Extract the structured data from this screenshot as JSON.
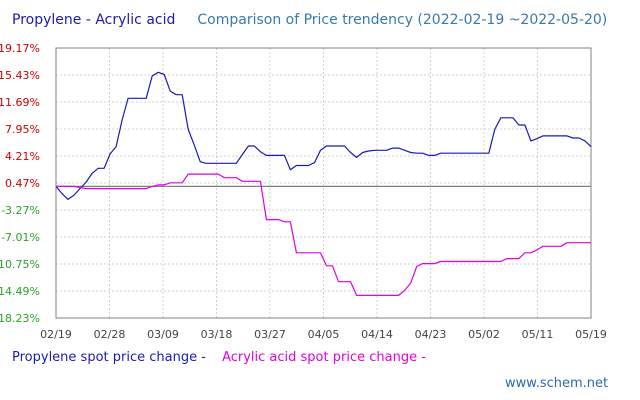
{
  "chart_data": {
    "type": "line",
    "title_left": "Propylene - Acrylic acid",
    "title_right": "Comparison of Price trendency (2022-02-19 ~2022-05-20)",
    "xlabel": "",
    "ylabel": "",
    "x_tick_labels": [
      "02/19",
      "02/28",
      "03/09",
      "03/18",
      "03/27",
      "04/05",
      "04/14",
      "04/23",
      "05/02",
      "05/11",
      "05/19"
    ],
    "y_ticks": [
      19.17,
      15.43,
      11.69,
      7.95,
      4.21,
      0.47,
      -3.27,
      -7.01,
      -10.75,
      -14.49,
      -18.23
    ],
    "y_tick_labels": [
      "19.17%",
      "15.43%",
      "11.69%",
      "7.95%",
      "4.21%",
      "0.47%",
      "-3.27%",
      "-7.01%",
      "-10.75%",
      "-14.49%",
      "-18.23%"
    ],
    "ylim": [
      -18.23,
      19.17
    ],
    "xlim": [
      0,
      89
    ],
    "grid": true,
    "zero_line": true,
    "series": [
      {
        "name": "Propylene spot price change",
        "color": "#1a1ab5",
        "points": [
          [
            0,
            0
          ],
          [
            1,
            -1
          ],
          [
            2,
            -1.8
          ],
          [
            3,
            -1.2
          ],
          [
            4,
            -0.3
          ],
          [
            5,
            0.6
          ],
          [
            6,
            1.8
          ],
          [
            7,
            2.5
          ],
          [
            8,
            2.5
          ],
          [
            9,
            4.5
          ],
          [
            10,
            5.5
          ],
          [
            11,
            9.2
          ],
          [
            12,
            12.2
          ],
          [
            13,
            12.2
          ],
          [
            14,
            12.2
          ],
          [
            15,
            12.2
          ],
          [
            16,
            15.3
          ],
          [
            17,
            15.8
          ],
          [
            18,
            15.5
          ],
          [
            19,
            13.2
          ],
          [
            20,
            12.7
          ],
          [
            21,
            12.7
          ],
          [
            22,
            7.9
          ],
          [
            23,
            5.7
          ],
          [
            24,
            3.4
          ],
          [
            25,
            3.2
          ],
          [
            26,
            3.2
          ],
          [
            27,
            3.2
          ],
          [
            28,
            3.2
          ],
          [
            29,
            3.2
          ],
          [
            30,
            3.2
          ],
          [
            31,
            4.4
          ],
          [
            32,
            5.6
          ],
          [
            33,
            5.6
          ],
          [
            34,
            4.8
          ],
          [
            35,
            4.3
          ],
          [
            36,
            4.3
          ],
          [
            37,
            4.3
          ],
          [
            38,
            4.3
          ],
          [
            39,
            2.3
          ],
          [
            40,
            2.9
          ],
          [
            41,
            2.9
          ],
          [
            42,
            2.9
          ],
          [
            43,
            3.3
          ],
          [
            44,
            5.0
          ],
          [
            45,
            5.6
          ],
          [
            46,
            5.6
          ],
          [
            47,
            5.6
          ],
          [
            48,
            5.6
          ],
          [
            49,
            4.7
          ],
          [
            50,
            4.0
          ],
          [
            51,
            4.7
          ],
          [
            52,
            4.9
          ],
          [
            53,
            5.0
          ],
          [
            54,
            5.0
          ],
          [
            55,
            5.0
          ],
          [
            56,
            5.3
          ],
          [
            57,
            5.3
          ],
          [
            58,
            5.0
          ],
          [
            59,
            4.7
          ],
          [
            60,
            4.6
          ],
          [
            61,
            4.6
          ],
          [
            62,
            4.3
          ],
          [
            63,
            4.3
          ],
          [
            64,
            4.6
          ],
          [
            65,
            4.6
          ],
          [
            66,
            4.6
          ],
          [
            67,
            4.6
          ],
          [
            68,
            4.6
          ],
          [
            69,
            4.6
          ],
          [
            70,
            4.6
          ],
          [
            71,
            4.6
          ],
          [
            72,
            4.6
          ],
          [
            73,
            7.9
          ],
          [
            74,
            9.5
          ],
          [
            75,
            9.5
          ],
          [
            76,
            9.5
          ],
          [
            77,
            8.5
          ],
          [
            78,
            8.5
          ],
          [
            79,
            6.3
          ],
          [
            80,
            6.6
          ],
          [
            81,
            7.0
          ],
          [
            82,
            7.0
          ],
          [
            83,
            7.0
          ],
          [
            84,
            7.0
          ],
          [
            85,
            7.0
          ],
          [
            86,
            6.7
          ],
          [
            87,
            6.7
          ],
          [
            88,
            6.3
          ],
          [
            89,
            5.5
          ]
        ]
      },
      {
        "name": "Acrylic acid spot price change",
        "color": "#e000e0",
        "points": [
          [
            0,
            0
          ],
          [
            3,
            0
          ],
          [
            5,
            -0.3
          ],
          [
            6,
            -0.3
          ],
          [
            7,
            -0.3
          ],
          [
            8,
            -0.3
          ],
          [
            9,
            -0.3
          ],
          [
            10,
            -0.3
          ],
          [
            11,
            -0.3
          ],
          [
            12,
            -0.3
          ],
          [
            13,
            -0.3
          ],
          [
            14,
            -0.3
          ],
          [
            15,
            -0.3
          ],
          [
            16,
            0
          ],
          [
            17,
            0.2
          ],
          [
            18,
            0.2
          ],
          [
            19,
            0.5
          ],
          [
            20,
            0.5
          ],
          [
            21,
            0.5
          ],
          [
            22,
            1.7
          ],
          [
            23,
            1.7
          ],
          [
            24,
            1.7
          ],
          [
            25,
            1.7
          ],
          [
            26,
            1.7
          ],
          [
            27,
            1.7
          ],
          [
            28,
            1.2
          ],
          [
            29,
            1.2
          ],
          [
            30,
            1.2
          ],
          [
            31,
            0.7
          ],
          [
            32,
            0.7
          ],
          [
            33,
            0.7
          ],
          [
            34,
            0.7
          ],
          [
            35,
            -4.6
          ],
          [
            36,
            -4.6
          ],
          [
            37,
            -4.6
          ],
          [
            38,
            -4.9
          ],
          [
            39,
            -4.9
          ],
          [
            40,
            -9.2
          ],
          [
            41,
            -9.2
          ],
          [
            42,
            -9.2
          ],
          [
            43,
            -9.2
          ],
          [
            44,
            -9.2
          ],
          [
            45,
            -11.0
          ],
          [
            46,
            -11.0
          ],
          [
            47,
            -13.2
          ],
          [
            48,
            -13.2
          ],
          [
            49,
            -13.2
          ],
          [
            50,
            -15.1
          ],
          [
            51,
            -15.1
          ],
          [
            52,
            -15.1
          ],
          [
            53,
            -15.1
          ],
          [
            54,
            -15.1
          ],
          [
            55,
            -15.1
          ],
          [
            56,
            -15.1
          ],
          [
            57,
            -15.1
          ],
          [
            58,
            -14.4
          ],
          [
            59,
            -13.4
          ],
          [
            60,
            -11.1
          ],
          [
            61,
            -10.7
          ],
          [
            62,
            -10.7
          ],
          [
            63,
            -10.7
          ],
          [
            64,
            -10.4
          ],
          [
            65,
            -10.4
          ],
          [
            66,
            -10.4
          ],
          [
            67,
            -10.4
          ],
          [
            68,
            -10.4
          ],
          [
            69,
            -10.4
          ],
          [
            70,
            -10.4
          ],
          [
            71,
            -10.4
          ],
          [
            72,
            -10.4
          ],
          [
            73,
            -10.4
          ],
          [
            74,
            -10.4
          ],
          [
            75,
            -10.0
          ],
          [
            76,
            -10.0
          ],
          [
            77,
            -10.0
          ],
          [
            78,
            -9.2
          ],
          [
            79,
            -9.2
          ],
          [
            80,
            -8.8
          ],
          [
            81,
            -8.3
          ],
          [
            82,
            -8.3
          ],
          [
            83,
            -8.3
          ],
          [
            84,
            -8.3
          ],
          [
            85,
            -7.8
          ],
          [
            86,
            -7.8
          ],
          [
            87,
            -7.8
          ],
          [
            88,
            -7.8
          ],
          [
            89,
            -7.8
          ]
        ]
      }
    ],
    "legend_labels": [
      "Propylene spot price change -",
      "Acrylic acid spot price change -"
    ]
  },
  "watermark": "www.schem.net",
  "colors": {
    "propylene": "#1a1ab5",
    "acrylic": "#e000e0",
    "tick_pos": "#cc0000",
    "tick_neg": "#2aa02a",
    "tick_zero": "#cc0000",
    "grid": "#d0d0d0",
    "axis": "#808080",
    "zero_line": "#808080"
  }
}
